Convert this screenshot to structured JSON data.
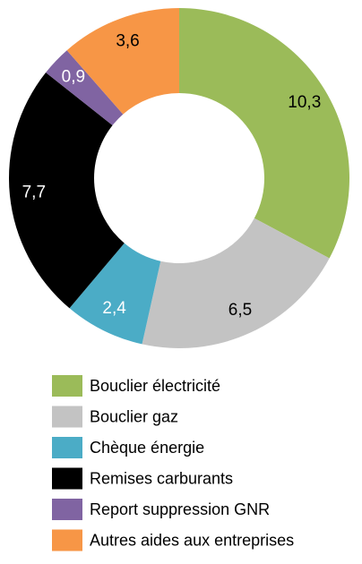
{
  "chart_data": {
    "type": "donut",
    "categories": [
      "Bouclier électricité",
      "Bouclier gaz",
      "Chèque énergie",
      "Remises carburants",
      "Report suppression GNR",
      "Autres aides aux entreprises"
    ],
    "values": [
      10.3,
      6.5,
      2.4,
      7.7,
      0.9,
      3.6
    ],
    "value_labels": [
      "10,3",
      "6,5",
      "2,4",
      "7,7",
      "0,9",
      "3,6"
    ],
    "colors": [
      "#9bbb59",
      "#c3c3c3",
      "#4bacc6",
      "#000000",
      "#8064a2",
      "#f79646"
    ],
    "label_colors": [
      "#000000",
      "#000000",
      "#ffffff",
      "#ffffff",
      "#ffffff",
      "#000000"
    ]
  }
}
